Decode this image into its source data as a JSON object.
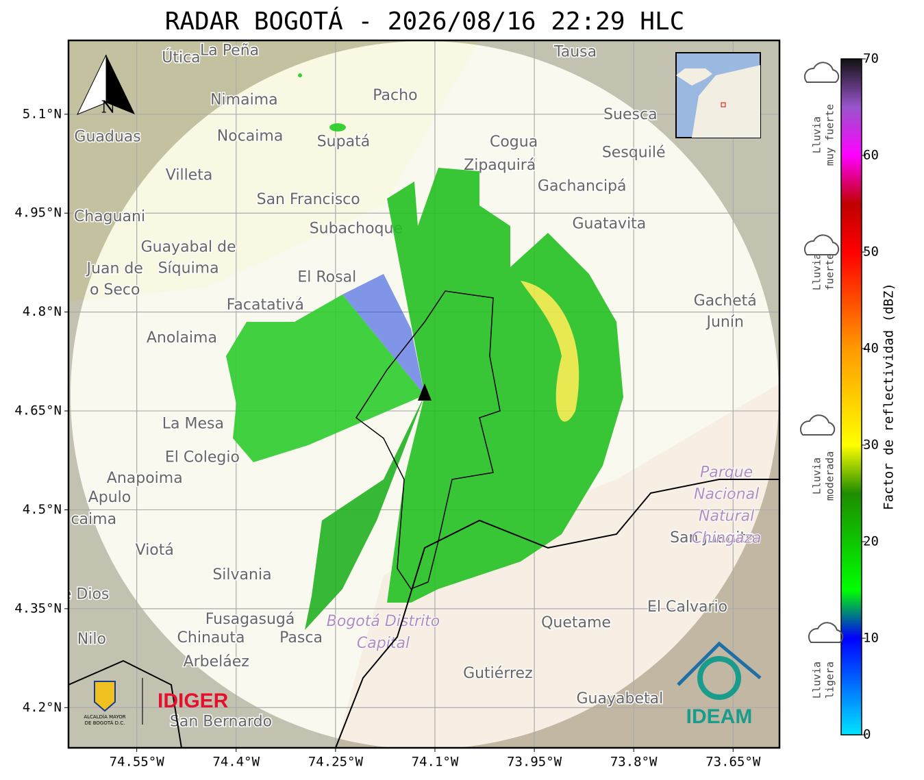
{
  "title": "RADAR BOGOTÁ - 2026/08/16 22:29 HLC",
  "map": {
    "xlim": [
      -74.653,
      -73.58
    ],
    "ylim": [
      4.139,
      5.212
    ],
    "north": "N",
    "lon_ticks": [
      {
        "value": -74.55,
        "label": "74.55°W"
      },
      {
        "value": -74.4,
        "label": "74.4°W"
      },
      {
        "value": -74.25,
        "label": "74.25°W"
      },
      {
        "value": -74.1,
        "label": "74.1°W"
      },
      {
        "value": -73.95,
        "label": "73.95°W"
      },
      {
        "value": -73.8,
        "label": "73.8°W"
      },
      {
        "value": -73.65,
        "label": "73.65°W"
      }
    ],
    "lat_ticks": [
      {
        "value": 5.1,
        "label": "5.1°N"
      },
      {
        "value": 4.95,
        "label": "4.95°N"
      },
      {
        "value": 4.8,
        "label": "4.8°N"
      },
      {
        "value": 4.65,
        "label": "4.65°N"
      },
      {
        "value": 4.5,
        "label": "4.5°N"
      },
      {
        "value": 4.35,
        "label": "4.35°N"
      },
      {
        "value": 4.2,
        "label": "4.2°N"
      }
    ],
    "places": [
      {
        "lines": [
          "Útica"
        ],
        "lon": -74.483,
        "lat": 5.185
      },
      {
        "lines": [
          "La Peña"
        ],
        "lon": -74.41,
        "lat": 5.196
      },
      {
        "lines": [
          "Tausa"
        ],
        "lon": -73.888,
        "lat": 5.194
      },
      {
        "lines": [
          "Pacho"
        ],
        "lon": -74.16,
        "lat": 5.128
      },
      {
        "lines": [
          "Nimaima"
        ],
        "lon": -74.388,
        "lat": 5.121
      },
      {
        "lines": [
          "Guaduas"
        ],
        "lon": -74.594,
        "lat": 5.065
      },
      {
        "lines": [
          "Nocaima"
        ],
        "lon": -74.379,
        "lat": 5.066
      },
      {
        "lines": [
          "Supatá"
        ],
        "lon": -74.238,
        "lat": 5.058
      },
      {
        "lines": [
          "Cogua"
        ],
        "lon": -73.981,
        "lat": 5.057
      },
      {
        "lines": [
          "Suesca"
        ],
        "lon": -73.805,
        "lat": 5.099
      },
      {
        "lines": [
          "Zipaquirá"
        ],
        "lon": -74.002,
        "lat": 5.022
      },
      {
        "lines": [
          "Sesquilé"
        ],
        "lon": -73.8,
        "lat": 5.041
      },
      {
        "lines": [
          "Villeta"
        ],
        "lon": -74.471,
        "lat": 5.007
      },
      {
        "lines": [
          "Gachancipá"
        ],
        "lon": -73.878,
        "lat": 4.99
      },
      {
        "lines": [
          "San Francisco"
        ],
        "lon": -74.291,
        "lat": 4.97
      },
      {
        "lines": [
          "Chaguani"
        ],
        "lon": -74.591,
        "lat": 4.944
      },
      {
        "lines": [
          "Guatavita"
        ],
        "lon": -73.837,
        "lat": 4.933
      },
      {
        "lines": [
          "Subachoque"
        ],
        "lon": -74.219,
        "lat": 4.926
      },
      {
        "lines": [
          "Guayabal de",
          "Síquima"
        ],
        "lon": -74.472,
        "lat": 4.898
      },
      {
        "lines": [
          "Juan de",
          "o Seco"
        ],
        "lon": -74.583,
        "lat": 4.865
      },
      {
        "lines": [
          "El Rosal"
        ],
        "lon": -74.263,
        "lat": 4.852
      },
      {
        "lines": [
          "Facatativá"
        ],
        "lon": -74.356,
        "lat": 4.81
      },
      {
        "lines": [
          "Gachetá",
          "Junín"
        ],
        "lon": -73.662,
        "lat": 4.816
      },
      {
        "lines": [
          "Anolaima"
        ],
        "lon": -74.482,
        "lat": 4.76
      },
      {
        "lines": [
          "La Mesa"
        ],
        "lon": -74.465,
        "lat": 4.63
      },
      {
        "lines": [
          "El Colegio"
        ],
        "lon": -74.451,
        "lat": 4.579
      },
      {
        "lines": [
          "Anapoima"
        ],
        "lon": -74.538,
        "lat": 4.547
      },
      {
        "lines": [
          "Apulo"
        ],
        "lon": -74.591,
        "lat": 4.518
      },
      {
        "lines": [
          "caima"
        ],
        "lon": -74.615,
        "lat": 4.485
      },
      {
        "lines": [
          "Viotá"
        ],
        "lon": -74.523,
        "lat": 4.438
      },
      {
        "lines": [
          "Silvania"
        ],
        "lon": -74.391,
        "lat": 4.401
      },
      {
        "lines": [
          "e Dios"
        ],
        "lon": -74.627,
        "lat": 4.371
      },
      {
        "lines": [
          "Fusagasugá"
        ],
        "lon": -74.379,
        "lat": 4.333
      },
      {
        "lines": [
          "Nilo"
        ],
        "lon": -74.618,
        "lat": 4.303
      },
      {
        "lines": [
          "Chinauta"
        ],
        "lon": -74.438,
        "lat": 4.305
      },
      {
        "lines": [
          "Pasca"
        ],
        "lon": -74.302,
        "lat": 4.305
      },
      {
        "lines": [
          "Arbeláez"
        ],
        "lon": -74.43,
        "lat": 4.269
      },
      {
        "lines": [
          "San Bernardo"
        ],
        "lon": -74.423,
        "lat": 4.178
      },
      {
        "lines": [
          "Quetame"
        ],
        "lon": -73.887,
        "lat": 4.328
      },
      {
        "lines": [
          "Gutiérrez"
        ],
        "lon": -74.005,
        "lat": 4.251
      },
      {
        "lines": [
          "Guayabetal"
        ],
        "lon": -73.821,
        "lat": 4.213
      },
      {
        "lines": [
          "El Calvario"
        ],
        "lon": -73.719,
        "lat": 4.352
      },
      {
        "lines": [
          "San Juanito"
        ],
        "lon": -73.681,
        "lat": 4.457
      }
    ],
    "regions": [
      {
        "lines": [
          "Bogotá Distrito",
          "Capital"
        ],
        "lon": -74.178,
        "lat": 4.33
      },
      {
        "lines": [
          "Parque",
          "Nacional",
          "Natural",
          "Chingaza"
        ],
        "lon": -73.66,
        "lat": 4.556
      }
    ],
    "logos": {
      "alcaldia": "ALCALDÍA MAYOR",
      "alcaldia_sub": "DE BOGOTÁ D.C.",
      "idiger": "IDIGER",
      "ideam": "IDEAM"
    }
  },
  "colorbar": {
    "label": "Factor de reflectividad (dBZ)",
    "lim": [
      0,
      70
    ],
    "ticks": [
      0,
      10,
      20,
      30,
      40,
      50,
      60,
      70
    ],
    "stops": [
      {
        "value": 0,
        "color": "#00e5ff"
      },
      {
        "value": 10,
        "color": "#0000ff"
      },
      {
        "value": 15,
        "color": "#00ff00"
      },
      {
        "value": 25,
        "color": "#1e8c00"
      },
      {
        "value": 30,
        "color": "#ffff00"
      },
      {
        "value": 40,
        "color": "#ff9900"
      },
      {
        "value": 50,
        "color": "#ff0000"
      },
      {
        "value": 55,
        "color": "#c00000"
      },
      {
        "value": 60,
        "color": "#ff00ff"
      },
      {
        "value": 65,
        "color": "#9955cc"
      },
      {
        "value": 70,
        "color": "#111111"
      }
    ],
    "categories": [
      {
        "lines": [
          "Lluvia",
          "muy fuerte"
        ]
      },
      {
        "lines": [
          "Lluvia",
          "fuerte"
        ]
      },
      {
        "lines": [
          "Lluvia",
          "moderada"
        ]
      },
      {
        "lines": [
          "Lluvia",
          "ligera"
        ]
      }
    ]
  }
}
